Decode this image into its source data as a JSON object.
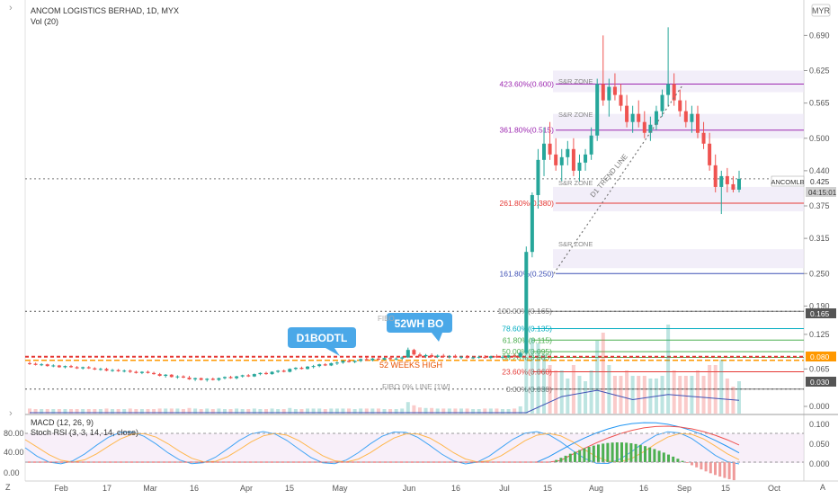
{
  "header": {
    "symbol_title": "ANCOM LOGISTICS BERHAD, 1D, MYX",
    "volume_label": "Vol (20)",
    "currency": "MYR"
  },
  "indicators": {
    "macd_label": "MACD (12, 26, 9)",
    "stoch_label": "Stoch RSI (3, 3, 14, 14, close)",
    "rsi_levels": [
      "80.00",
      "40.00",
      "0.00"
    ],
    "macd_levels": [
      "0.100",
      "0.050",
      "0.000"
    ]
  },
  "annotations": {
    "callout_d1": "D1BODTL",
    "callout_52wh": "52WH BO",
    "weeks_high": "52 WEEKS HIGH",
    "fibo_0_line": "FIBO 0% LINE [1W]",
    "fibo_short": "FIBO",
    "trend_line": "D1 TREND LINE",
    "sr_zone": "S&R ZONE"
  },
  "price_tags": {
    "ticker": "ANCOMLB",
    "last": "0.425",
    "countdown": "04:15:01",
    "p165": "0.165",
    "p080": "0.080",
    "p030": "0.030"
  },
  "bottom_bar": {
    "left_btn": "Z",
    "right_btn": "A"
  },
  "colors": {
    "up": "#26a69a",
    "down": "#ef5350",
    "macd": "#2196f3",
    "signal": "#ef5350",
    "stoch_k": "#42a5f5",
    "stoch_d": "#ffb74d",
    "callout": "#4aa8e8"
  },
  "chart_data": {
    "type": "candlestick",
    "title": "ANCOM LOGISTICS BERHAD, 1D, MYX",
    "ylim": [
      0.0,
      0.72
    ],
    "y_ticks": [
      "0.690",
      "0.625",
      "0.565",
      "0.500",
      "0.440",
      "0.375",
      "0.315",
      "0.250",
      "0.190",
      "0.125",
      "0.065",
      "0.000"
    ],
    "x_ticks": [
      "Feb",
      "17",
      "Mar",
      "16",
      "Apr",
      "15",
      "May",
      "Jun",
      "16",
      "Jul",
      "15",
      "Aug",
      "16",
      "Sep",
      "15",
      "Oct"
    ],
    "last_price": 0.425,
    "fib_upper": [
      {
        "label": "423.60%(0.600)",
        "value": 0.6,
        "color": "#9c27b0"
      },
      {
        "label": "361.80%(0.515)",
        "value": 0.515,
        "color": "#9c27b0"
      },
      {
        "label": "261.80%(0.380)",
        "value": 0.38,
        "color": "#e53935"
      },
      {
        "label": "161.80%(0.250)",
        "value": 0.25,
        "color": "#3f51b5"
      }
    ],
    "fib_lower": [
      {
        "label": "100.00%(0.165)",
        "value": 0.165,
        "color": "#787878"
      },
      {
        "label": "78.60%(0.135)",
        "value": 0.135,
        "color": "#00acc1"
      },
      {
        "label": "61.80%(0.115)",
        "value": 0.115,
        "color": "#4caf50"
      },
      {
        "label": "50.00%(0.095)",
        "value": 0.095,
        "color": "#4caf50"
      },
      {
        "label": "38.20%(0.085)",
        "value": 0.085,
        "color": "#4caf50"
      },
      {
        "label": "23.60%(0.060)",
        "value": 0.06,
        "color": "#e53935"
      },
      {
        "label": "0.00%(0.030)",
        "value": 0.03,
        "color": "#787878"
      }
    ],
    "sr_zones": [
      [
        0.585,
        0.625
      ],
      [
        0.5,
        0.545
      ],
      [
        0.365,
        0.41
      ],
      [
        0.26,
        0.295
      ]
    ],
    "candles_note": "approximate daily OHLC read from chart",
    "candles": [
      [
        0.075,
        0.078,
        0.072,
        0.074
      ],
      [
        0.074,
        0.076,
        0.071,
        0.072
      ],
      [
        0.072,
        0.075,
        0.07,
        0.073
      ],
      [
        0.073,
        0.074,
        0.069,
        0.07
      ],
      [
        0.07,
        0.073,
        0.068,
        0.071
      ],
      [
        0.071,
        0.072,
        0.067,
        0.068
      ],
      [
        0.068,
        0.071,
        0.066,
        0.07
      ],
      [
        0.07,
        0.072,
        0.067,
        0.068
      ],
      [
        0.068,
        0.07,
        0.065,
        0.066
      ],
      [
        0.066,
        0.069,
        0.064,
        0.068
      ],
      [
        0.068,
        0.07,
        0.065,
        0.066
      ],
      [
        0.066,
        0.068,
        0.063,
        0.064
      ],
      [
        0.064,
        0.067,
        0.062,
        0.065
      ],
      [
        0.065,
        0.067,
        0.061,
        0.062
      ],
      [
        0.062,
        0.065,
        0.06,
        0.063
      ],
      [
        0.063,
        0.065,
        0.06,
        0.061
      ],
      [
        0.061,
        0.064,
        0.059,
        0.062
      ],
      [
        0.062,
        0.064,
        0.058,
        0.06
      ],
      [
        0.06,
        0.062,
        0.057,
        0.058
      ],
      [
        0.058,
        0.061,
        0.056,
        0.06
      ],
      [
        0.06,
        0.062,
        0.057,
        0.058
      ],
      [
        0.058,
        0.06,
        0.055,
        0.056
      ],
      [
        0.056,
        0.058,
        0.052,
        0.053
      ],
      [
        0.053,
        0.056,
        0.05,
        0.055
      ],
      [
        0.055,
        0.056,
        0.05,
        0.051
      ],
      [
        0.051,
        0.054,
        0.048,
        0.052
      ],
      [
        0.052,
        0.054,
        0.049,
        0.05
      ],
      [
        0.05,
        0.053,
        0.046,
        0.047
      ],
      [
        0.047,
        0.05,
        0.044,
        0.049
      ],
      [
        0.049,
        0.05,
        0.045,
        0.046
      ],
      [
        0.046,
        0.049,
        0.043,
        0.048
      ],
      [
        0.048,
        0.05,
        0.045,
        0.046
      ],
      [
        0.046,
        0.05,
        0.044,
        0.049
      ],
      [
        0.049,
        0.052,
        0.047,
        0.051
      ],
      [
        0.051,
        0.053,
        0.048,
        0.049
      ],
      [
        0.049,
        0.053,
        0.047,
        0.052
      ],
      [
        0.052,
        0.055,
        0.05,
        0.054
      ],
      [
        0.054,
        0.056,
        0.051,
        0.052
      ],
      [
        0.052,
        0.057,
        0.051,
        0.056
      ],
      [
        0.056,
        0.059,
        0.054,
        0.058
      ],
      [
        0.058,
        0.06,
        0.055,
        0.056
      ],
      [
        0.056,
        0.061,
        0.055,
        0.06
      ],
      [
        0.06,
        0.063,
        0.058,
        0.062
      ],
      [
        0.062,
        0.064,
        0.059,
        0.06
      ],
      [
        0.06,
        0.066,
        0.059,
        0.065
      ],
      [
        0.065,
        0.068,
        0.063,
        0.067
      ],
      [
        0.067,
        0.069,
        0.064,
        0.065
      ],
      [
        0.065,
        0.07,
        0.064,
        0.069
      ],
      [
        0.069,
        0.072,
        0.066,
        0.07
      ],
      [
        0.07,
        0.074,
        0.068,
        0.073
      ],
      [
        0.073,
        0.075,
        0.07,
        0.071
      ],
      [
        0.071,
        0.076,
        0.07,
        0.075
      ],
      [
        0.075,
        0.078,
        0.072,
        0.076
      ],
      [
        0.076,
        0.08,
        0.074,
        0.079
      ],
      [
        0.079,
        0.082,
        0.076,
        0.077
      ],
      [
        0.077,
        0.08,
        0.075,
        0.079
      ],
      [
        0.079,
        0.083,
        0.077,
        0.082
      ],
      [
        0.082,
        0.085,
        0.079,
        0.08
      ],
      [
        0.08,
        0.084,
        0.078,
        0.083
      ],
      [
        0.083,
        0.086,
        0.08,
        0.081
      ],
      [
        0.081,
        0.085,
        0.08,
        0.084
      ],
      [
        0.084,
        0.086,
        0.081,
        0.082
      ],
      [
        0.082,
        0.085,
        0.08,
        0.083
      ],
      [
        0.083,
        0.087,
        0.081,
        0.085
      ],
      [
        0.085,
        0.102,
        0.084,
        0.098
      ],
      [
        0.098,
        0.1,
        0.088,
        0.09
      ],
      [
        0.09,
        0.093,
        0.085,
        0.087
      ],
      [
        0.087,
        0.091,
        0.084,
        0.089
      ],
      [
        0.089,
        0.092,
        0.085,
        0.086
      ],
      [
        0.086,
        0.09,
        0.084,
        0.088
      ],
      [
        0.088,
        0.091,
        0.085,
        0.086
      ],
      [
        0.086,
        0.089,
        0.083,
        0.087
      ],
      [
        0.087,
        0.09,
        0.084,
        0.085
      ],
      [
        0.085,
        0.088,
        0.082,
        0.086
      ],
      [
        0.086,
        0.089,
        0.083,
        0.084
      ],
      [
        0.084,
        0.087,
        0.082,
        0.085
      ],
      [
        0.085,
        0.088,
        0.083,
        0.086
      ],
      [
        0.086,
        0.089,
        0.083,
        0.084
      ],
      [
        0.084,
        0.088,
        0.082,
        0.087
      ],
      [
        0.087,
        0.09,
        0.084,
        0.085
      ],
      [
        0.085,
        0.088,
        0.083,
        0.086
      ],
      [
        0.086,
        0.089,
        0.084,
        0.088
      ],
      [
        0.088,
        0.091,
        0.085,
        0.086
      ],
      [
        0.086,
        0.095,
        0.085,
        0.093
      ],
      [
        0.093,
        0.3,
        0.09,
        0.29
      ],
      [
        0.29,
        0.4,
        0.28,
        0.395
      ],
      [
        0.395,
        0.48,
        0.37,
        0.46
      ],
      [
        0.46,
        0.52,
        0.43,
        0.49
      ],
      [
        0.49,
        0.53,
        0.46,
        0.47
      ],
      [
        0.47,
        0.5,
        0.44,
        0.45
      ],
      [
        0.45,
        0.48,
        0.42,
        0.465
      ],
      [
        0.465,
        0.495,
        0.45,
        0.48
      ],
      [
        0.48,
        0.5,
        0.43,
        0.44
      ],
      [
        0.44,
        0.47,
        0.42,
        0.455
      ],
      [
        0.455,
        0.48,
        0.44,
        0.47
      ],
      [
        0.47,
        0.52,
        0.46,
        0.505
      ],
      [
        0.505,
        0.61,
        0.495,
        0.6
      ],
      [
        0.6,
        0.69,
        0.56,
        0.57
      ],
      [
        0.57,
        0.61,
        0.54,
        0.595
      ],
      [
        0.595,
        0.62,
        0.57,
        0.58
      ],
      [
        0.58,
        0.6,
        0.55,
        0.56
      ],
      [
        0.56,
        0.58,
        0.52,
        0.53
      ],
      [
        0.53,
        0.56,
        0.51,
        0.545
      ],
      [
        0.545,
        0.57,
        0.52,
        0.53
      ],
      [
        0.53,
        0.55,
        0.5,
        0.51
      ],
      [
        0.51,
        0.54,
        0.495,
        0.525
      ],
      [
        0.525,
        0.56,
        0.515,
        0.55
      ],
      [
        0.55,
        0.59,
        0.54,
        0.58
      ],
      [
        0.58,
        0.705,
        0.56,
        0.6
      ],
      [
        0.6,
        0.62,
        0.56,
        0.57
      ],
      [
        0.57,
        0.59,
        0.54,
        0.55
      ],
      [
        0.55,
        0.57,
        0.52,
        0.53
      ],
      [
        0.53,
        0.56,
        0.51,
        0.545
      ],
      [
        0.545,
        0.56,
        0.5,
        0.51
      ],
      [
        0.51,
        0.53,
        0.48,
        0.49
      ],
      [
        0.49,
        0.51,
        0.44,
        0.45
      ],
      [
        0.45,
        0.47,
        0.4,
        0.41
      ],
      [
        0.41,
        0.44,
        0.36,
        0.43
      ],
      [
        0.43,
        0.445,
        0.4,
        0.415
      ],
      [
        0.415,
        0.43,
        0.4,
        0.405
      ],
      [
        0.405,
        0.44,
        0.4,
        0.425
      ]
    ]
  }
}
